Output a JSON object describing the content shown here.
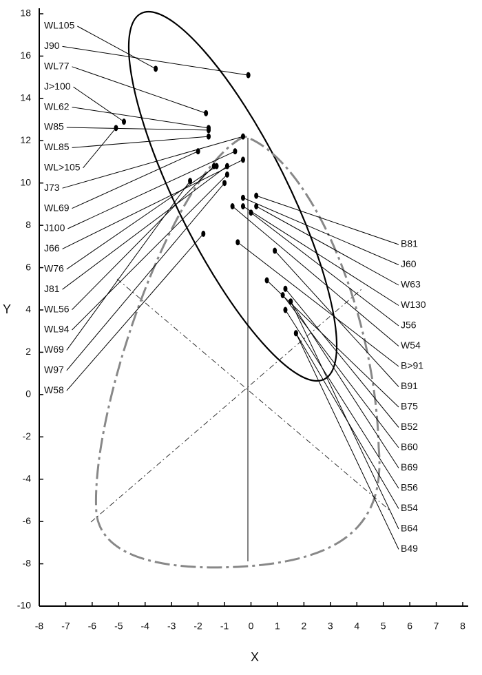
{
  "chart_data": {
    "type": "scatter",
    "xlabel": "X",
    "ylabel": "Y",
    "xlim": [
      -8,
      8
    ],
    "ylim": [
      -10,
      18
    ],
    "xticks": [
      -8,
      -7,
      -6,
      -5,
      -4,
      -3,
      -2,
      -1,
      0,
      1,
      2,
      3,
      4,
      5,
      6,
      7,
      8
    ],
    "yticks": [
      -10,
      -8,
      -6,
      -4,
      -2,
      0,
      2,
      4,
      6,
      8,
      10,
      12,
      14,
      16,
      18
    ],
    "color": "#000000",
    "annotated_points": {
      "left": {
        "labels": [
          "WL105",
          "J90",
          "WL77",
          "J>100",
          "WL62",
          "W85",
          "WL85",
          "WL>105",
          "J73",
          "WL69",
          "J100",
          "J66",
          "W76",
          "J81",
          "WL56",
          "WL94",
          "W69",
          "W97",
          "W58"
        ],
        "x": [
          -3.6,
          -0.1,
          -1.7,
          -4.8,
          -1.6,
          -1.6,
          -1.6,
          -5.1,
          -0.3,
          -2.0,
          -0.6,
          -0.3,
          -1.3,
          -0.9,
          -1.4,
          -0.9,
          -2.3,
          -1.0,
          -1.8
        ],
        "y": [
          15.4,
          15.1,
          13.3,
          12.9,
          12.6,
          12.5,
          12.2,
          12.6,
          12.2,
          11.5,
          11.5,
          11.1,
          10.8,
          10.8,
          10.8,
          10.4,
          10.1,
          10.0,
          7.6
        ]
      },
      "right": {
        "labels": [
          "B81",
          "J60",
          "W63",
          "W130",
          "J56",
          "W54",
          "B>91",
          "B91",
          "B75",
          "B52",
          "B60",
          "B69",
          "B56",
          "B54",
          "B64",
          "B49"
        ],
        "x": [
          0.2,
          -0.3,
          0.2,
          -0.3,
          0.0,
          -0.7,
          -0.5,
          0.9,
          0.6,
          1.3,
          1.2,
          1.5,
          1.3,
          1.7,
          1.5,
          1.7
        ],
        "y": [
          9.4,
          9.3,
          8.9,
          8.9,
          8.6,
          8.9,
          7.2,
          6.8,
          5.4,
          5.0,
          4.7,
          4.4,
          4.0,
          2.9,
          4.4,
          2.9
        ]
      }
    }
  }
}
